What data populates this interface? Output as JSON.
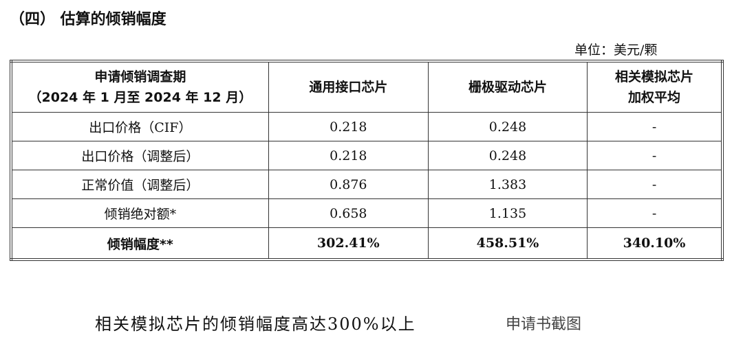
{
  "heading": "（四） 估算的倾销幅度",
  "unit": "单位：美元/颗",
  "table": {
    "header": [
      [
        "申请倾销调查期",
        "（2024 年 1 月至 2024 年 12 月）"
      ],
      [
        "通用接口芯片"
      ],
      [
        "栅极驱动芯片"
      ],
      [
        "相关模拟芯片",
        "加权平均"
      ]
    ],
    "rows": [
      [
        "出口价格（CIF）",
        "0.218",
        "0.248",
        "-"
      ],
      [
        "出口价格（调整后）",
        "0.218",
        "0.248",
        "-"
      ],
      [
        "正常价值（调整后）",
        "0.876",
        "1.383",
        "-"
      ],
      [
        "倾销绝对额*",
        "0.658",
        "1.135",
        "-"
      ],
      [
        "倾销幅度**",
        "302.41%",
        "458.51%",
        "340.10%"
      ]
    ]
  },
  "caption": "相关模拟芯片的倾销幅度高达300%以上",
  "source": "申请书截图"
}
